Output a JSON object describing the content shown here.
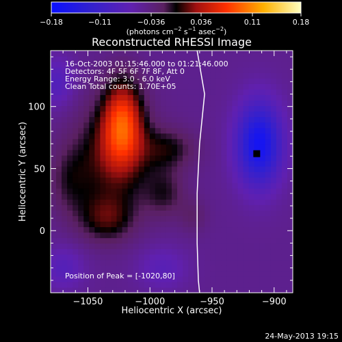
{
  "chart_data": {
    "type": "heatmap",
    "title": "Reconstructed RHESSI Image",
    "xlabel": "Heliocentric X (arcsec)",
    "ylabel": "Heliocentric Y (arcsec)",
    "xlim": [
      -1080,
      -885
    ],
    "ylim": [
      -50,
      145
    ],
    "xticks": [
      -1050,
      -1000,
      -950,
      -900
    ],
    "xtick_labels": [
      "−1050",
      "−1000",
      "−950",
      "−900"
    ],
    "yticks": [
      0,
      50,
      100
    ],
    "ytick_labels": [
      "0",
      "50",
      "100"
    ],
    "colorbar": {
      "min": -0.18,
      "max": 0.18,
      "ticks": [
        -0.18,
        -0.11,
        -0.036,
        0.036,
        0.11,
        0.18
      ],
      "tick_labels": [
        "−0.18",
        "−0.11",
        "−0.036",
        "0.036",
        "0.11",
        "0.18"
      ],
      "units_text": "(photons cm",
      "units_exp1": "−2",
      "units_mid": " s",
      "units_exp2": "−1",
      "units_mid2": " asec",
      "units_exp3": "−2",
      "units_end": ")"
    },
    "info_lines": [
      "16-Oct-2003 01:15:46.000 to 01:21:46.000",
      "Detectors: 4F 5F 6F 7F 8F, Att 0",
      "Energy Range: 3.0 - 6.0 keV",
      "Clean    Total counts: 1.70E+05"
    ],
    "peak_label": "Position of Peak = [-1020,80]",
    "peak": [
      -1020,
      80
    ],
    "sources": [
      {
        "x": -1022,
        "y": 88,
        "amp": 0.1,
        "sx": 11,
        "sy": 24
      },
      {
        "x": -1030,
        "y": 62,
        "amp": 0.06,
        "sx": 22,
        "sy": 30
      },
      {
        "x": -1035,
        "y": 10,
        "amp": 0.05,
        "sx": 16,
        "sy": 14
      },
      {
        "x": -988,
        "y": 30,
        "amp": 0.035,
        "sx": 12,
        "sy": 14
      },
      {
        "x": -985,
        "y": 66,
        "amp": 0.04,
        "sx": 16,
        "sy": 12
      },
      {
        "x": -1065,
        "y": 40,
        "amp": 0.03,
        "sx": 12,
        "sy": 20
      },
      {
        "x": -965,
        "y": 12,
        "amp": 0.02,
        "sx": 8,
        "sy": 10
      },
      {
        "x": -912,
        "y": 70,
        "amp": -0.12,
        "sx": 13,
        "sy": 24
      },
      {
        "x": -1075,
        "y": 120,
        "amp": -0.04,
        "sx": 10,
        "sy": 14
      },
      {
        "x": -1070,
        "y": -30,
        "amp": -0.035,
        "sx": 12,
        "sy": 12
      },
      {
        "x": -990,
        "y": -30,
        "amp": -0.03,
        "sx": 14,
        "sy": 12
      }
    ],
    "min_marker": [
      -914,
      62
    ],
    "limb_line": [
      [
        -962,
        145
      ],
      [
        -956,
        110
      ],
      [
        -960,
        70
      ],
      [
        -962,
        30
      ],
      [
        -962,
        -10
      ],
      [
        -961,
        -40
      ],
      [
        -960,
        -50
      ]
    ]
  },
  "footer_date": "24-May-2013 19:15"
}
